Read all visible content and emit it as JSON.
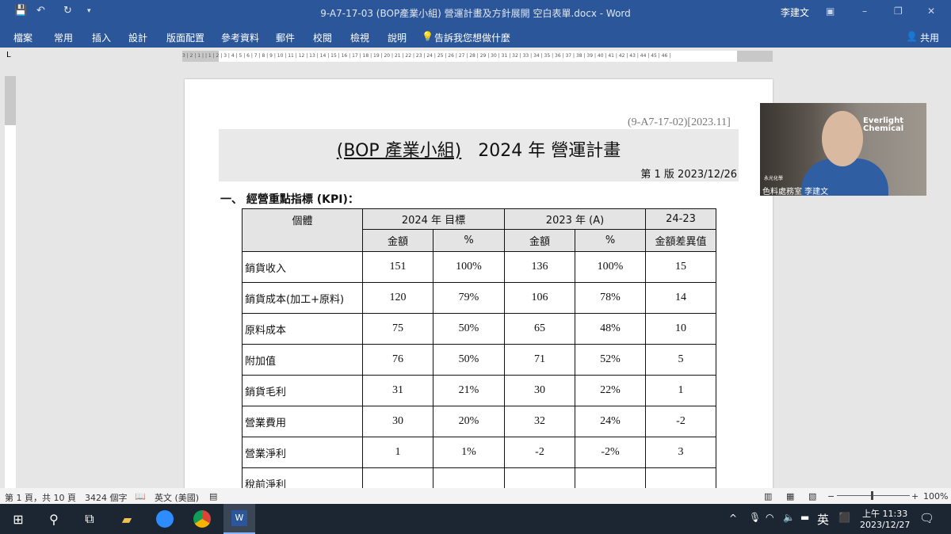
{
  "window": {
    "title": "9-A7-17-03 (BOP產業小組) 營運計畫及方針展開 空白表單.docx  -  Word",
    "user": "李建文"
  },
  "ribbon": {
    "tabs": [
      "檔案",
      "常用",
      "插入",
      "設計",
      "版面配置",
      "參考資料",
      "郵件",
      "校閱",
      "檢視",
      "說明"
    ],
    "tell_me": "告訴我您想做什麼",
    "share": "共用"
  },
  "ruler": {
    "text": "3 | 2 | 1 |   | 1 | 2 | 3 | 4 | 5 | 6 | 7 | 8 | 9 | 10 | 11 | 12 | 13 | 14 | 15 | 16 | 17 | 18 | 19 | 20 | 21 | 22 | 23 | 24 | 25 | 26 | 27 | 28 | 29 | 30 | 31 | 32 | 33 | 34 | 35 | 36 | 37 | 38 | 39 | 40 | 41 | 42 | 43 | 44 | 45 | 46 |"
  },
  "doc": {
    "code": "(9-A7-17-02)[2023.11]",
    "title_group": "(BOP 產業小組)",
    "title_rest": "2024 年  營運計畫",
    "version": "第 1 版  2023/12/26",
    "section": "一、    經營重點指標 (KPI)：",
    "table": {
      "header1": [
        "個體",
        "2024 年 目標",
        "2023 年 (A)",
        "24-23"
      ],
      "header2": [
        "金額",
        "%",
        "金額",
        "%",
        "金額差異值"
      ],
      "rows": [
        [
          "銷貨收入",
          "151",
          "100%",
          "136",
          "100%",
          "15"
        ],
        [
          "銷貨成本(加工+原料)",
          "120",
          "79%",
          "106",
          "78%",
          "14"
        ],
        [
          "原料成本",
          "75",
          "50%",
          "65",
          "48%",
          "10"
        ],
        [
          "附加值",
          "76",
          "50%",
          "71",
          "52%",
          "5"
        ],
        [
          "銷貨毛利",
          "31",
          "21%",
          "30",
          "22%",
          "1"
        ],
        [
          "營業費用",
          "30",
          "20%",
          "32",
          "24%",
          "-2"
        ],
        [
          "營業淨利",
          "1",
          "1%",
          "-2",
          "-2%",
          "3"
        ],
        [
          "稅前淨利",
          "",
          "",
          "",
          "",
          ""
        ]
      ]
    }
  },
  "video": {
    "logo": "Everlight Chemical",
    "company": "永光化學",
    "name": "色料處務室 李建文"
  },
  "status": {
    "page": "第 1 頁，共 10 頁",
    "words": "3424 個字",
    "lang": "英文 (美國)",
    "zoom": "100%"
  },
  "taskbar": {
    "ime": "英",
    "time": "上午 11:33",
    "date": "2023/12/27"
  }
}
